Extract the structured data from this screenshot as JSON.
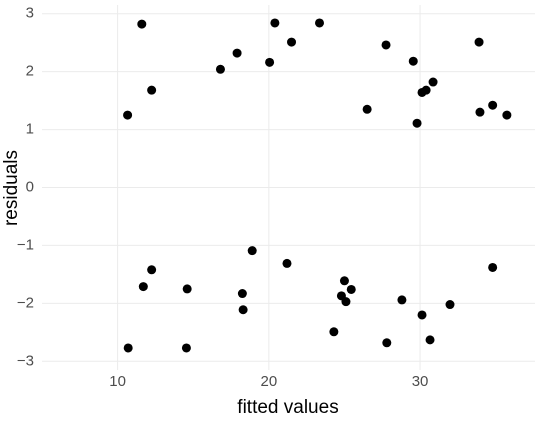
{
  "chart_data": {
    "type": "scatter",
    "x_label": "fitted values",
    "y_label": "residuals",
    "x": [
      10.66,
      11.6,
      12.25,
      10.7,
      11.7,
      12.25,
      14.6,
      14.55,
      16.8,
      17.9,
      18.25,
      18.3,
      18.9,
      20.05,
      20.4,
      21.5,
      21.2,
      23.35,
      24.3,
      24.8,
      25.0,
      25.1,
      25.45,
      26.5,
      27.75,
      27.8,
      28.8,
      29.55,
      29.8,
      30.13,
      30.4,
      30.13,
      30.66,
      30.86,
      31.98,
      33.9,
      33.96,
      34.8,
      34.8,
      35.74
    ],
    "values": [
      1.25,
      2.82,
      1.68,
      -2.77,
      -1.71,
      -1.42,
      -1.75,
      -2.77,
      2.04,
      2.32,
      -1.83,
      -2.11,
      -1.09,
      2.16,
      2.84,
      2.51,
      -1.31,
      2.84,
      -2.49,
      -1.87,
      -1.61,
      -1.97,
      -1.76,
      1.35,
      2.46,
      -2.68,
      -1.94,
      2.18,
      1.11,
      1.64,
      1.68,
      -2.2,
      -2.63,
      1.82,
      -2.02,
      2.51,
      1.3,
      1.42,
      -1.38,
      1.25
    ],
    "color": "#000000",
    "xlim": [
      5,
      37.6
    ],
    "xticks": [
      10,
      20,
      30
    ],
    "ylim": [
      -3.15,
      3.15
    ],
    "yticks": [
      {
        "value": -3,
        "label": "−3"
      },
      {
        "value": -2,
        "label": "−2"
      },
      {
        "value": -1,
        "label": "−1"
      },
      0,
      1,
      2,
      3
    ],
    "grid": true
  }
}
